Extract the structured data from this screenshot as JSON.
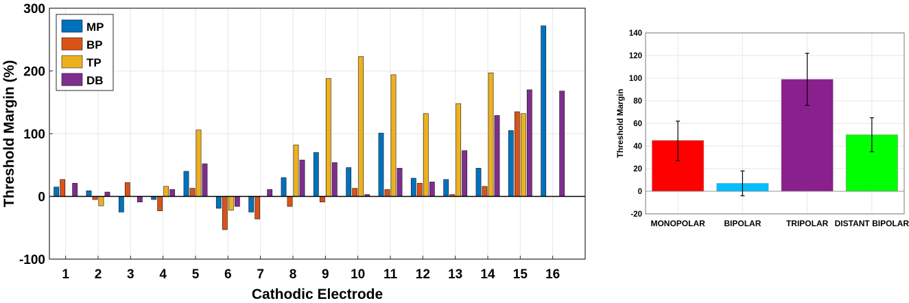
{
  "chart_data": [
    {
      "type": "bar",
      "title": "",
      "xlabel": "Cathodic Electrode",
      "ylabel": "Threshold Margin (%)",
      "ylim": [
        -100,
        300
      ],
      "yticks": [
        -100,
        0,
        100,
        200,
        300
      ],
      "grid": true,
      "legend_position": "top-left",
      "categories": [
        "1",
        "2",
        "3",
        "4",
        "5",
        "6",
        "7",
        "8",
        "9",
        "10",
        "11",
        "12",
        "13",
        "14",
        "15",
        "16"
      ],
      "series": [
        {
          "name": "MP",
          "color": "#0072BD",
          "values": [
            15,
            9,
            -25,
            -5,
            40,
            -19,
            -25,
            30,
            70,
            46,
            101,
            29,
            27,
            45,
            105,
            272
          ]
        },
        {
          "name": "BP",
          "color": "#D95319",
          "values": [
            27,
            -5,
            22,
            -23,
            13,
            -53,
            -36,
            -16,
            -9,
            13,
            11,
            21,
            3,
            16,
            135,
            null
          ]
        },
        {
          "name": "TP",
          "color": "#EDB120",
          "values": [
            null,
            -15,
            null,
            16,
            106,
            -22,
            null,
            82,
            188,
            223,
            194,
            132,
            148,
            197,
            132,
            null
          ]
        },
        {
          "name": "DB",
          "color": "#7E2F8E",
          "values": [
            21,
            7,
            -9,
            11,
            52,
            -16,
            11,
            58,
            54,
            3,
            45,
            23,
            73,
            129,
            170,
            168
          ]
        }
      ]
    },
    {
      "type": "bar",
      "title": "",
      "xlabel": "",
      "ylabel": "Threshold Margin",
      "ylim": [
        -20,
        140
      ],
      "yticks": [
        -20,
        0,
        20,
        40,
        60,
        80,
        100,
        120,
        140
      ],
      "grid": true,
      "categories": [
        "MONOPOLAR",
        "BIPOLAR",
        "TRIPOLAR",
        "DISTANT BIPOLAR"
      ],
      "values": [
        45,
        7,
        99,
        50
      ],
      "error_low": [
        27,
        -4,
        76,
        35
      ],
      "error_high": [
        62,
        18,
        122,
        65
      ],
      "colors": [
        "#FF0000",
        "#00BFFF",
        "#8A1F8E",
        "#00FF00"
      ]
    }
  ]
}
